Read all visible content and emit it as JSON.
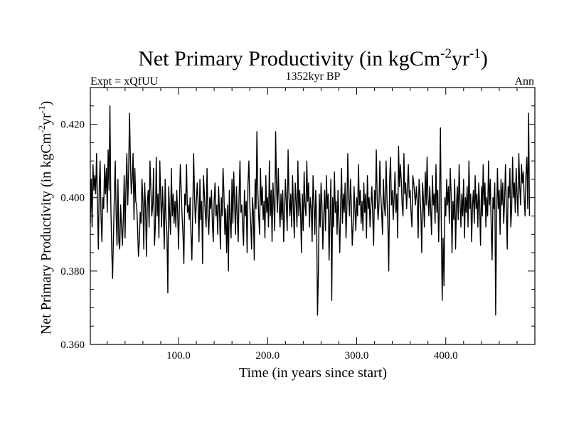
{
  "chart_data": {
    "type": "line",
    "title": "Net Primary Productivity (in kgCm",
    "title_sup1": "-2",
    "title_mid": "yr",
    "title_sup2": "-1",
    "title_end": ")",
    "subtitle_left": "Expt = xQfUU",
    "subtitle_center": "1352kyr BP",
    "subtitle_right": "Ann",
    "xlabel": "Time (in years since start)",
    "ylabel": "Net Primary Productivity (in kgCm",
    "ylabel_sup1": "-2",
    "ylabel_mid": "yr",
    "ylabel_sup2": "-1",
    "ylabel_end": ")",
    "xlim": [
      1,
      500
    ],
    "ylim": [
      0.36,
      0.43
    ],
    "x_ticks": [
      100,
      200,
      300,
      400
    ],
    "x_tick_labels": [
      "100.0",
      "200.0",
      "300.0",
      "400.0"
    ],
    "y_ticks": [
      0.36,
      0.38,
      0.4,
      0.42
    ],
    "y_tick_labels": [
      "0.360",
      "0.380",
      "0.400",
      "0.420"
    ],
    "series": [
      {
        "name": "Net Primary Productivity",
        "color": "#000000",
        "x_start": 1,
        "x_step": 1,
        "values": [
          0.393,
          0.405,
          0.392,
          0.409,
          0.402,
          0.406,
          0.401,
          0.412,
          0.399,
          0.386,
          0.403,
          0.41,
          0.395,
          0.388,
          0.4,
          0.397,
          0.409,
          0.401,
          0.408,
          0.396,
          0.413,
          0.402,
          0.425,
          0.398,
          0.386,
          0.378,
          0.39,
          0.401,
          0.41,
          0.395,
          0.387,
          0.405,
          0.388,
          0.386,
          0.398,
          0.392,
          0.387,
          0.394,
          0.406,
          0.389,
          0.403,
          0.412,
          0.398,
          0.407,
          0.423,
          0.41,
          0.401,
          0.405,
          0.412,
          0.394,
          0.408,
          0.399,
          0.398,
          0.392,
          0.384,
          0.388,
          0.396,
          0.393,
          0.405,
          0.399,
          0.386,
          0.404,
          0.397,
          0.384,
          0.399,
          0.402,
          0.392,
          0.41,
          0.402,
          0.395,
          0.398,
          0.408,
          0.387,
          0.392,
          0.411,
          0.395,
          0.401,
          0.389,
          0.41,
          0.4,
          0.392,
          0.403,
          0.396,
          0.386,
          0.405,
          0.394,
          0.39,
          0.374,
          0.403,
          0.396,
          0.39,
          0.408,
          0.395,
          0.401,
          0.393,
          0.399,
          0.392,
          0.402,
          0.396,
          0.386,
          0.398,
          0.409,
          0.402,
          0.395,
          0.39,
          0.382,
          0.401,
          0.398,
          0.409,
          0.396,
          0.398,
          0.394,
          0.4,
          0.39,
          0.383,
          0.397,
          0.412,
          0.4,
          0.393,
          0.399,
          0.404,
          0.398,
          0.388,
          0.405,
          0.394,
          0.399,
          0.382,
          0.406,
          0.401,
          0.396,
          0.392,
          0.408,
          0.395,
          0.39,
          0.4,
          0.397,
          0.402,
          0.393,
          0.388,
          0.399,
          0.404,
          0.395,
          0.398,
          0.39,
          0.403,
          0.396,
          0.386,
          0.4,
          0.395,
          0.408,
          0.401,
          0.39,
          0.397,
          0.385,
          0.398,
          0.38,
          0.402,
          0.394,
          0.389,
          0.405,
          0.393,
          0.407,
          0.398,
          0.39,
          0.403,
          0.395,
          0.388,
          0.401,
          0.41,
          0.396,
          0.398,
          0.392,
          0.387,
          0.402,
          0.395,
          0.399,
          0.385,
          0.404,
          0.41,
          0.398,
          0.393,
          0.386,
          0.4,
          0.396,
          0.383,
          0.405,
          0.397,
          0.418,
          0.402,
          0.395,
          0.39,
          0.408,
          0.398,
          0.403,
          0.394,
          0.399,
          0.389,
          0.406,
          0.396,
          0.4,
          0.392,
          0.41,
          0.395,
          0.402,
          0.388,
          0.404,
          0.398,
          0.391,
          0.418,
          0.403,
          0.396,
          0.408,
          0.398,
          0.392,
          0.401,
          0.394,
          0.402,
          0.388,
          0.396,
          0.405,
          0.398,
          0.391,
          0.413,
          0.4,
          0.395,
          0.401,
          0.392,
          0.406,
          0.397,
          0.389,
          0.404,
          0.399,
          0.392,
          0.41,
          0.395,
          0.402,
          0.396,
          0.385,
          0.401,
          0.391,
          0.407,
          0.398,
          0.395,
          0.41,
          0.399,
          0.404,
          0.392,
          0.4,
          0.397,
          0.388,
          0.406,
          0.399,
          0.39,
          0.402,
          0.395,
          0.368,
          0.379,
          0.401,
          0.392,
          0.404,
          0.398,
          0.386,
          0.395,
          0.402,
          0.391,
          0.406,
          0.397,
          0.401,
          0.383,
          0.394,
          0.405,
          0.372,
          0.4,
          0.392,
          0.407,
          0.396,
          0.399,
          0.39,
          0.402,
          0.394,
          0.385,
          0.398,
          0.408,
          0.393,
          0.401,
          0.396,
          0.404,
          0.389,
          0.397,
          0.412,
          0.4,
          0.395,
          0.405,
          0.398,
          0.387,
          0.392,
          0.403,
          0.397,
          0.391,
          0.4,
          0.395,
          0.409,
          0.398,
          0.402,
          0.393,
          0.399,
          0.391,
          0.404,
          0.396,
          0.401,
          0.389,
          0.406,
          0.397,
          0.4,
          0.392,
          0.398,
          0.403,
          0.395,
          0.387,
          0.402,
          0.397,
          0.413,
          0.4,
          0.394,
          0.398,
          0.41,
          0.401,
          0.396,
          0.39,
          0.405,
          0.398,
          0.395,
          0.41,
          0.4,
          0.393,
          0.38,
          0.405,
          0.411,
          0.398,
          0.402,
          0.394,
          0.4,
          0.407,
          0.396,
          0.401,
          0.389,
          0.414,
          0.403,
          0.409,
          0.405,
          0.398,
          0.395,
          0.412,
          0.401,
          0.404,
          0.397,
          0.403,
          0.409,
          0.4,
          0.402,
          0.396,
          0.392,
          0.406,
          0.404,
          0.401,
          0.398,
          0.403,
          0.399,
          0.389,
          0.405,
          0.401,
          0.396,
          0.385,
          0.404,
          0.399,
          0.392,
          0.407,
          0.398,
          0.411,
          0.4,
          0.395,
          0.403,
          0.397,
          0.39,
          0.406,
          0.398,
          0.401,
          0.393,
          0.409,
          0.396,
          0.402,
          0.388,
          0.399,
          0.419,
          0.392,
          0.372,
          0.389,
          0.376,
          0.4,
          0.395,
          0.405,
          0.398,
          0.403,
          0.393,
          0.408,
          0.401,
          0.385,
          0.399,
          0.394,
          0.405,
          0.386,
          0.398,
          0.403,
          0.394,
          0.409,
          0.399,
          0.392,
          0.401,
          0.395,
          0.405,
          0.389,
          0.4,
          0.396,
          0.403,
          0.392,
          0.41,
          0.397,
          0.401,
          0.388,
          0.398,
          0.402,
          0.393,
          0.406,
          0.397,
          0.401,
          0.392,
          0.404,
          0.398,
          0.387,
          0.403,
          0.395,
          0.409,
          0.398,
          0.404,
          0.392,
          0.4,
          0.395,
          0.41,
          0.398,
          0.405,
          0.392,
          0.383,
          0.4,
          0.397,
          0.404,
          0.368,
          0.393,
          0.408,
          0.397,
          0.402,
          0.39,
          0.405,
          0.398,
          0.404,
          0.393,
          0.399,
          0.409,
          0.397,
          0.386,
          0.403,
          0.4,
          0.408,
          0.392,
          0.397,
          0.411,
          0.4,
          0.404,
          0.396,
          0.408,
          0.401,
          0.395,
          0.412,
          0.403,
          0.398,
          0.409,
          0.404,
          0.407,
          0.4,
          0.395,
          0.406,
          0.411,
          0.397,
          0.423,
          0.395
        ]
      }
    ]
  }
}
